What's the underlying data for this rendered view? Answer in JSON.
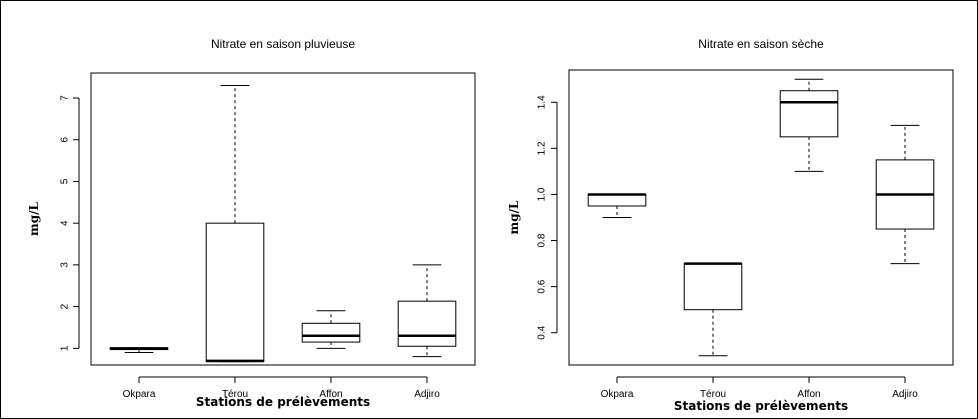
{
  "chart_data": [
    {
      "type": "boxplot",
      "title": "Nitrate en saison pluvieuse",
      "xlabel": "Stations de prélèvements",
      "ylabel": "mg/L",
      "ylim": [
        0.6,
        7.6
      ],
      "yticks": [
        1,
        2,
        3,
        4,
        5,
        6,
        7
      ],
      "ytick_labels": [
        "1",
        "2",
        "3",
        "4",
        "5",
        "6",
        "7"
      ],
      "categories": [
        "Okpara",
        "Térou",
        "Affon",
        "Adjiro"
      ],
      "boxes": [
        {
          "min": 0.9,
          "q1": 0.97,
          "median": 1.0,
          "q3": 1.01,
          "max": 1.01
        },
        {
          "min": 0.68,
          "q1": 0.68,
          "median": 0.7,
          "q3": 4.0,
          "max": 7.3
        },
        {
          "min": 1.0,
          "q1": 1.15,
          "median": 1.3,
          "q3": 1.6,
          "max": 1.9
        },
        {
          "min": 0.8,
          "q1": 1.05,
          "median": 1.3,
          "q3": 2.13,
          "max": 3.0
        }
      ]
    },
    {
      "type": "boxplot",
      "title": "Nitrate en saison sèche",
      "xlabel": "Stations de prélèvements",
      "ylabel": "mg/L",
      "ylim": [
        0.26,
        1.54
      ],
      "yticks": [
        0.4,
        0.6,
        0.8,
        1.0,
        1.2,
        1.4
      ],
      "ytick_labels": [
        "0.4",
        "0.6",
        "0.8",
        "1.0",
        "1.2",
        "1.4"
      ],
      "categories": [
        "Okpara",
        "Térou",
        "Affon",
        "Adjiro"
      ],
      "boxes": [
        {
          "min": 0.9,
          "q1": 0.95,
          "median": 1.0,
          "q3": 1.0,
          "max": 1.0
        },
        {
          "min": 0.3,
          "q1": 0.5,
          "median": 0.7,
          "q3": 0.7,
          "max": 0.7
        },
        {
          "min": 1.1,
          "q1": 1.25,
          "median": 1.4,
          "q3": 1.45,
          "max": 1.5
        },
        {
          "min": 0.7,
          "q1": 0.85,
          "median": 1.0,
          "q3": 1.15,
          "max": 1.3
        }
      ]
    }
  ]
}
